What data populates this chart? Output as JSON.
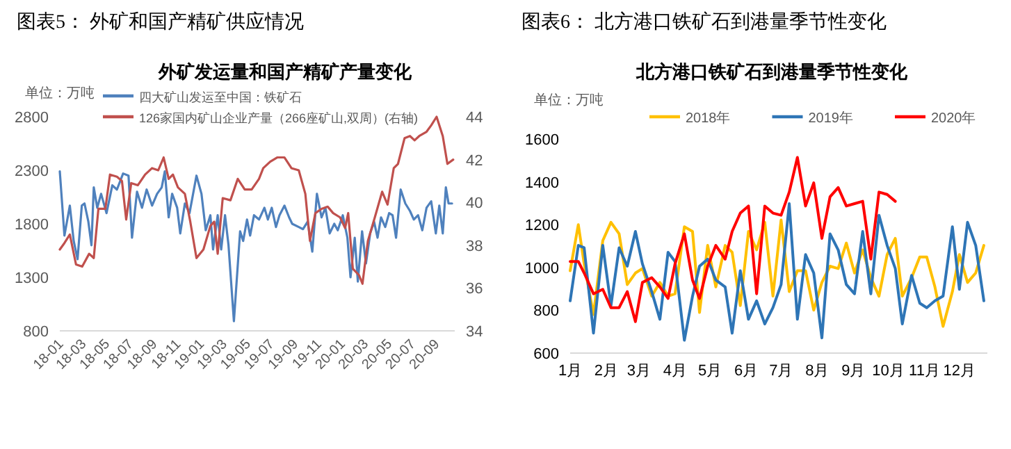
{
  "chart_data": [
    {
      "type": "line",
      "title": "外矿发运量和国产精矿产量变化",
      "annotations": [
        "图表5：  外矿和国产精矿供应情况",
        "单位：万吨"
      ],
      "xlim": [
        "2018-01-01",
        "2020-10-20"
      ],
      "xticks": [
        {
          "value": "2018-01",
          "label": "18-01"
        },
        {
          "value": "2018-03",
          "label": "18-03"
        },
        {
          "value": "2018-05",
          "label": "18-05"
        },
        {
          "value": "2018-07",
          "label": "18-07"
        },
        {
          "value": "2018-09",
          "label": "18-09"
        },
        {
          "value": "2018-11",
          "label": "18-11"
        },
        {
          "value": "2019-01",
          "label": "19-01"
        },
        {
          "value": "2019-03",
          "label": "19-03"
        },
        {
          "value": "2019-05",
          "label": "19-05"
        },
        {
          "value": "2019-07",
          "label": "19-07"
        },
        {
          "value": "2019-09",
          "label": "19-09"
        },
        {
          "value": "2019-11",
          "label": "19-11"
        },
        {
          "value": "2020-01",
          "label": "20-01"
        },
        {
          "value": "2020-03",
          "label": "20-03"
        },
        {
          "value": "2020-05",
          "label": "20-05"
        },
        {
          "value": "2020-07",
          "label": "20-07"
        },
        {
          "value": "2020-09",
          "label": "20-09"
        }
      ],
      "ylim": [
        800,
        2800
      ],
      "yticks": [
        800,
        1300,
        1800,
        2300,
        2800
      ],
      "y2lim": [
        34,
        44
      ],
      "y2ticks": [
        34,
        36,
        38,
        40,
        42,
        44
      ],
      "legend": "top",
      "series": [
        {
          "name": "四大矿山发运至中国：铁矿石",
          "color": "#4f81bd",
          "x": [
            "2018-01-01",
            "2018-01-13",
            "2018-01-27",
            "2018-02-06",
            "2018-02-16",
            "2018-02-27",
            "2018-03-06",
            "2018-03-16",
            "2018-03-24",
            "2018-03-30",
            "2018-04-08",
            "2018-04-18",
            "2018-05-02",
            "2018-05-17",
            "2018-05-29",
            "2018-06-14",
            "2018-06-28",
            "2018-07-07",
            "2018-07-20",
            "2018-08-02",
            "2018-08-14",
            "2018-08-28",
            "2018-09-10",
            "2018-09-22",
            "2018-09-30",
            "2018-10-10",
            "2018-10-19",
            "2018-11-01",
            "2018-11-09",
            "2018-11-21",
            "2018-12-03",
            "2018-12-21",
            "2019-01-03",
            "2019-01-14",
            "2019-01-26",
            "2019-02-02",
            "2019-02-14",
            "2019-02-23",
            "2019-03-05",
            "2019-03-14",
            "2019-03-28",
            "2019-04-13",
            "2019-04-21",
            "2019-05-01",
            "2019-05-09",
            "2019-05-19",
            "2019-06-01",
            "2019-06-15",
            "2019-06-24",
            "2019-07-04",
            "2019-07-15",
            "2019-07-24",
            "2019-08-06",
            "2019-08-18",
            "2019-08-26",
            "2019-09-12",
            "2019-09-23",
            "2019-10-05",
            "2019-10-17",
            "2019-10-29",
            "2019-11-10",
            "2019-11-20",
            "2019-12-01",
            "2019-12-13",
            "2019-12-22",
            "2020-01-04",
            "2020-01-16",
            "2020-01-24",
            "2020-02-04",
            "2020-02-12",
            "2020-02-23",
            "2020-03-04",
            "2020-03-15",
            "2020-03-25",
            "2020-04-03",
            "2020-04-12",
            "2020-04-23",
            "2020-05-03",
            "2020-05-12",
            "2020-05-21",
            "2020-06-02",
            "2020-06-14",
            "2020-06-26",
            "2020-07-06",
            "2020-07-17",
            "2020-07-28",
            "2020-08-08",
            "2020-08-20",
            "2020-09-01",
            "2020-09-10",
            "2020-09-19",
            "2020-09-27",
            "2020-10-04",
            "2020-10-13"
          ],
          "values": [
            2290,
            1690,
            1970,
            1640,
            1470,
            1970,
            1990,
            1820,
            1600,
            2140,
            1950,
            2080,
            1900,
            2160,
            2120,
            2270,
            2250,
            1670,
            2100,
            1950,
            2120,
            1970,
            2080,
            2140,
            2290,
            1860,
            2080,
            1950,
            1710,
            1990,
            1900,
            2250,
            2080,
            1740,
            1880,
            1560,
            1880,
            1560,
            1880,
            1600,
            890,
            1730,
            1640,
            1840,
            1690,
            1880,
            1840,
            1950,
            1840,
            1950,
            1770,
            1880,
            1970,
            1860,
            1800,
            1770,
            1750,
            1820,
            1540,
            2080,
            1860,
            1950,
            1710,
            1800,
            1740,
            1880,
            1670,
            1300,
            1670,
            1260,
            1730,
            1430,
            1710,
            1820,
            1670,
            1860,
            1770,
            1900,
            1880,
            1670,
            2120,
            1990,
            1920,
            1840,
            1880,
            1740,
            1950,
            2010,
            1710,
            1970,
            1710,
            2140,
            1990,
            1990
          ]
        },
        {
          "name": "126家国内矿山企业产量（266座矿山,双周）(右轴)",
          "color": "#c0504d",
          "axis": "y2",
          "x": [
            "2018-01-01",
            "2018-01-13",
            "2018-01-27",
            "2018-02-12",
            "2018-02-28",
            "2018-03-18",
            "2018-03-30",
            "2018-04-11",
            "2018-04-29",
            "2018-05-11",
            "2018-05-29",
            "2018-06-11",
            "2018-06-22",
            "2018-07-05",
            "2018-07-22",
            "2018-08-10",
            "2018-08-28",
            "2018-09-13",
            "2018-09-27",
            "2018-10-10",
            "2018-10-21",
            "2018-11-03",
            "2018-11-21",
            "2018-12-05",
            "2018-12-21",
            "2019-01-08",
            "2019-01-26",
            "2019-02-05",
            "2019-02-14",
            "2019-02-27",
            "2019-03-19",
            "2019-04-07",
            "2019-04-25",
            "2019-05-13",
            "2019-06-01",
            "2019-06-12",
            "2019-06-30",
            "2019-07-18",
            "2019-08-06",
            "2019-08-24",
            "2019-09-12",
            "2019-09-29",
            "2019-10-11",
            "2019-10-25",
            "2019-11-10",
            "2019-11-26",
            "2019-12-10",
            "2019-12-28",
            "2020-01-10",
            "2020-01-18",
            "2020-01-30",
            "2020-02-15",
            "2020-02-24",
            "2020-03-09",
            "2020-03-27",
            "2020-04-15",
            "2020-04-29",
            "2020-05-15",
            "2020-05-26",
            "2020-06-12",
            "2020-06-26",
            "2020-07-08",
            "2020-07-20",
            "2020-08-08",
            "2020-08-20",
            "2020-09-03",
            "2020-09-19",
            "2020-10-01",
            "2020-10-16"
          ],
          "values": [
            37.8,
            38.1,
            38.5,
            37.1,
            37.0,
            37.6,
            37.4,
            39.7,
            39.7,
            41.3,
            41.2,
            41.0,
            39.2,
            40.9,
            40.8,
            41.3,
            41.6,
            41.5,
            42.1,
            41.1,
            41.3,
            40.7,
            40.4,
            39.1,
            37.4,
            37.8,
            38.9,
            39.1,
            37.6,
            40.2,
            40.1,
            41.1,
            40.6,
            40.6,
            41.1,
            41.6,
            41.9,
            42.1,
            42.1,
            41.6,
            41.5,
            40.4,
            38.2,
            39.5,
            39.7,
            39.8,
            39.5,
            39.3,
            38.8,
            39.5,
            36.9,
            36.6,
            36.2,
            38.2,
            39.3,
            40.5,
            39.9,
            41.6,
            41.8,
            43.0,
            43.1,
            42.9,
            43.1,
            43.3,
            43.6,
            44.0,
            43.1,
            41.8,
            42.0
          ]
        }
      ]
    },
    {
      "type": "line",
      "title": "北方港口铁矿石到港量季节性变化",
      "annotations": [
        "图表6：  北方港口铁矿石到港量季节性变化",
        "单位：万吨"
      ],
      "x": [
        "--01-01",
        "--01-08",
        "--01-13",
        "--01-21",
        "--01-29",
        "--02-05",
        "--02-12",
        "--02-19",
        "--02-26",
        "--03-04",
        "--03-12",
        "--03-19",
        "--03-26",
        "--04-01",
        "--04-09",
        "--04-16",
        "--04-22",
        "--04-29",
        "--05-06",
        "--05-14",
        "--05-20",
        "--05-27",
        "--06-03",
        "--06-10",
        "--06-17",
        "--06-24",
        "--07-01",
        "--07-08",
        "--07-15",
        "--07-22",
        "--07-29",
        "--08-05",
        "--08-12",
        "--08-19",
        "--08-26",
        "--09-02",
        "--09-09",
        "--09-16",
        "--09-23",
        "--09-30",
        "--10-07",
        "--10-13",
        "--10-21",
        "--10-28",
        "--11-03",
        "--11-10",
        "--11-17",
        "--11-25",
        "--12-01",
        "--12-08",
        "--12-15",
        "--12-22"
      ],
      "xlim": [
        "--01-01",
        "--12-25"
      ],
      "xticks": [
        {
          "value": "--01-01",
          "label": "1月"
        },
        {
          "value": "--02-01",
          "label": "2月"
        },
        {
          "value": "--03-01",
          "label": "3月"
        },
        {
          "value": "--04-01",
          "label": "4月"
        },
        {
          "value": "--05-01",
          "label": "5月"
        },
        {
          "value": "--06-01",
          "label": "6月"
        },
        {
          "value": "--07-01",
          "label": "7月"
        },
        {
          "value": "--08-01",
          "label": "8月"
        },
        {
          "value": "--09-01",
          "label": "9月"
        },
        {
          "value": "--10-01",
          "label": "10月"
        },
        {
          "value": "--11-01",
          "label": "11月"
        },
        {
          "value": "--12-01",
          "label": "12月"
        }
      ],
      "ylim": [
        600,
        1600
      ],
      "yticks": [
        600,
        800,
        1000,
        1200,
        1400,
        1600
      ],
      "legend": "top",
      "series": [
        {
          "name": "2018年",
          "color": "#ffc000",
          "values": [
            985,
            1200,
            1017,
            780,
            1125,
            1211,
            1157,
            920,
            974,
            995,
            866,
            930,
            866,
            877,
            1190,
            1168,
            790,
            1103,
            909,
            1103,
            1071,
            822,
            1168,
            1082,
            1211,
            866,
            1222,
            887,
            985,
            985,
            801,
            930,
            1006,
            995,
            1114,
            974,
            1082,
            952,
            866,
            1060,
            1136,
            866,
            952,
            1049,
            1049,
            909,
            725,
            887,
            1060,
            930,
            974,
            1103
          ]
        },
        {
          "name": "2019年",
          "color": "#2e75b6",
          "values": [
            844,
            1103,
            1092,
            693,
            1103,
            822,
            1092,
            1006,
            1168,
            1017,
            887,
            758,
            1071,
            1028,
            660,
            866,
            1006,
            1039,
            941,
            909,
            693,
            985,
            758,
            844,
            736,
            812,
            920,
            1298,
            758,
            1060,
            974,
            671,
            1157,
            1082,
            920,
            877,
            1168,
            877,
            1244,
            1103,
            995,
            736,
            963,
            833,
            812,
            844,
            866,
            1190,
            898,
            1211,
            1103,
            844
          ]
        },
        {
          "name": "2020年",
          "color": "#ff0000",
          "x": [
            "--01-01",
            "--01-08",
            "--01-13",
            "--01-21",
            "--01-29",
            "--02-05",
            "--02-12",
            "--02-19",
            "--02-26",
            "--03-04",
            "--03-12",
            "--03-19",
            "--03-26",
            "--04-01",
            "--04-09",
            "--04-16",
            "--04-22",
            "--04-29",
            "--05-06",
            "--05-14",
            "--05-20",
            "--05-27",
            "--06-03",
            "--06-10",
            "--06-17",
            "--06-24",
            "--07-01",
            "--07-08",
            "--07-15",
            "--07-22",
            "--07-29",
            "--08-05",
            "--08-12",
            "--08-19",
            "--08-26",
            "--09-02",
            "--09-09",
            "--09-16",
            "--09-23",
            "--09-30",
            "--10-07"
          ],
          "values": [
            1028,
            1028,
            974,
            877,
            898,
            812,
            812,
            887,
            747,
            930,
            952,
            909,
            855,
            1017,
            1157,
            941,
            855,
            1006,
            1103,
            1039,
            1168,
            1254,
            1287,
            877,
            1287,
            1254,
            1244,
            1352,
            1514,
            1287,
            1395,
            1136,
            1330,
            1373,
            1287,
            1298,
            1309,
            1039,
            1352,
            1341,
            1309
          ]
        }
      ]
    }
  ]
}
